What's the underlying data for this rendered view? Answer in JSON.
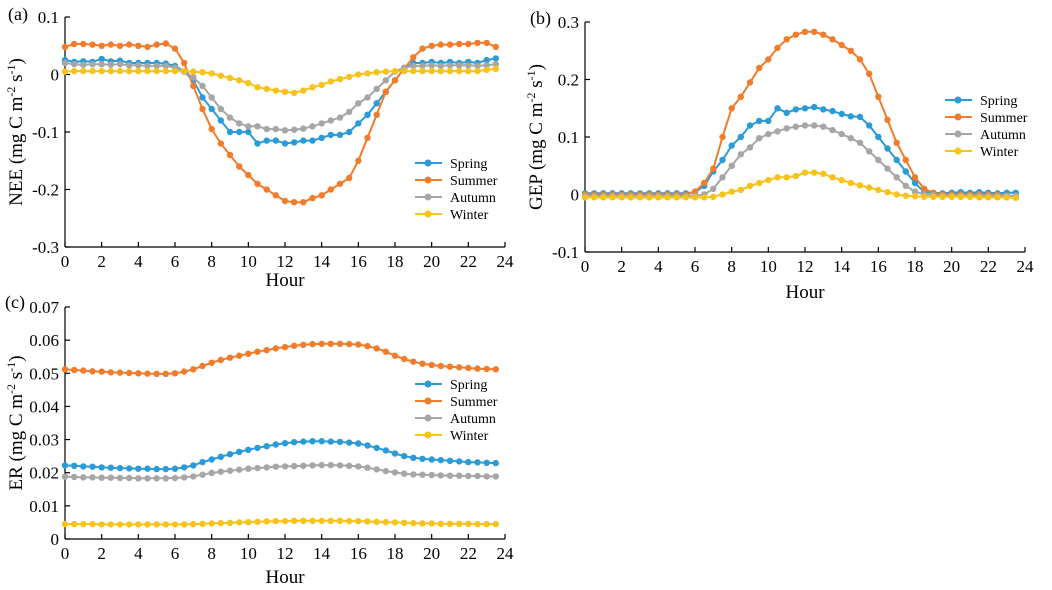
{
  "chart_data": [
    {
      "panel": "(a)",
      "type": "line",
      "title": "",
      "xlabel": "Hour",
      "ylabel_main": "NEE (mg C m",
      "ylabel_sup1": "-2",
      "ylabel_mid": " s",
      "ylabel_sup2": "-1",
      "ylabel_end": ")",
      "xlim": [
        0,
        24
      ],
      "ylim": [
        -0.3,
        0.1
      ],
      "xticks": [
        0,
        2,
        4,
        6,
        8,
        10,
        12,
        14,
        16,
        18,
        20,
        22,
        24
      ],
      "yticks": [
        -0.3,
        -0.2,
        -0.1,
        0,
        0.1
      ],
      "ytick_labels": [
        "-0.3",
        "-0.2",
        "-0.1",
        "0",
        "0.1"
      ],
      "legend_position": "center-right",
      "x": [
        0,
        0.5,
        1,
        1.5,
        2,
        2.5,
        3,
        3.5,
        4,
        4.5,
        5,
        5.5,
        6,
        6.5,
        7,
        7.5,
        8,
        8.5,
        9,
        9.5,
        10,
        10.5,
        11,
        11.5,
        12,
        12.5,
        13,
        13.5,
        14,
        14.5,
        15,
        15.5,
        16,
        16.5,
        17,
        17.5,
        18,
        18.5,
        19,
        19.5,
        20,
        20.5,
        21,
        21.5,
        22,
        22.5,
        23,
        23.5
      ],
      "series": [
        {
          "name": "Spring",
          "color": "#2b9bd8",
          "values": [
            0.025,
            0.022,
            0.023,
            0.022,
            0.027,
            0.023,
            0.024,
            0.02,
            0.02,
            0.02,
            0.02,
            0.019,
            0.015,
            0.005,
            -0.01,
            -0.04,
            -0.06,
            -0.08,
            -0.1,
            -0.1,
            -0.1,
            -0.12,
            -0.115,
            -0.115,
            -0.12,
            -0.118,
            -0.115,
            -0.115,
            -0.11,
            -0.105,
            -0.105,
            -0.1,
            -0.085,
            -0.07,
            -0.05,
            -0.03,
            -0.01,
            0.01,
            0.02,
            0.02,
            0.022,
            0.02,
            0.022,
            0.02,
            0.022,
            0.02,
            0.025,
            0.028
          ]
        },
        {
          "name": "Summer",
          "color": "#f07c2c",
          "values": [
            0.048,
            0.053,
            0.053,
            0.052,
            0.05,
            0.052,
            0.05,
            0.052,
            0.05,
            0.048,
            0.052,
            0.054,
            0.045,
            0.02,
            -0.02,
            -0.06,
            -0.095,
            -0.12,
            -0.14,
            -0.16,
            -0.175,
            -0.19,
            -0.2,
            -0.21,
            -0.22,
            -0.222,
            -0.222,
            -0.215,
            -0.21,
            -0.2,
            -0.19,
            -0.18,
            -0.15,
            -0.11,
            -0.07,
            -0.03,
            -0.01,
            0.01,
            0.03,
            0.045,
            0.05,
            0.052,
            0.052,
            0.053,
            0.053,
            0.055,
            0.055,
            0.048
          ]
        },
        {
          "name": "Autumn",
          "color": "#a6a6a6",
          "values": [
            0.02,
            0.018,
            0.017,
            0.018,
            0.018,
            0.017,
            0.018,
            0.016,
            0.016,
            0.015,
            0.015,
            0.015,
            0.012,
            0.005,
            -0.005,
            -0.02,
            -0.04,
            -0.06,
            -0.075,
            -0.085,
            -0.09,
            -0.09,
            -0.095,
            -0.095,
            -0.097,
            -0.096,
            -0.094,
            -0.09,
            -0.085,
            -0.08,
            -0.075,
            -0.065,
            -0.05,
            -0.04,
            -0.025,
            -0.01,
            0.005,
            0.012,
            0.015,
            0.015,
            0.016,
            0.015,
            0.016,
            0.016,
            0.016,
            0.015,
            0.016,
            0.018
          ]
        },
        {
          "name": "Winter",
          "color": "#f7c31a",
          "values": [
            0.005,
            0.006,
            0.006,
            0.006,
            0.006,
            0.006,
            0.006,
            0.006,
            0.006,
            0.006,
            0.006,
            0.006,
            0.006,
            0.006,
            0.005,
            0.004,
            0.002,
            -0.002,
            -0.006,
            -0.01,
            -0.015,
            -0.022,
            -0.025,
            -0.028,
            -0.03,
            -0.032,
            -0.028,
            -0.022,
            -0.018,
            -0.012,
            -0.008,
            -0.004,
            0,
            0.002,
            0.004,
            0.005,
            0.006,
            0.006,
            0.006,
            0.006,
            0.006,
            0.006,
            0.006,
            0.006,
            0.006,
            0.006,
            0.008,
            0.01
          ]
        }
      ]
    },
    {
      "panel": "(b)",
      "type": "line",
      "title": "",
      "xlabel": "Hour",
      "ylabel_main": "GEP (mg C m",
      "ylabel_sup1": "-2",
      "ylabel_mid": " s",
      "ylabel_sup2": "-1",
      "ylabel_end": ")",
      "xlim": [
        0,
        24
      ],
      "ylim": [
        -0.1,
        0.3
      ],
      "xticks": [
        0,
        2,
        4,
        6,
        8,
        10,
        12,
        14,
        16,
        18,
        20,
        22,
        24
      ],
      "yticks": [
        -0.1,
        0,
        0.1,
        0.2,
        0.3
      ],
      "ytick_labels": [
        "-0.1",
        "0",
        "0.1",
        "0.2",
        "0.3"
      ],
      "legend_position": "top-right",
      "x": [
        0,
        0.5,
        1,
        1.5,
        2,
        2.5,
        3,
        3.5,
        4,
        4.5,
        5,
        5.5,
        6,
        6.5,
        7,
        7.5,
        8,
        8.5,
        9,
        9.5,
        10,
        10.5,
        11,
        11.5,
        12,
        12.5,
        13,
        13.5,
        14,
        14.5,
        15,
        15.5,
        16,
        16.5,
        17,
        17.5,
        18,
        18.5,
        19,
        19.5,
        20,
        20.5,
        21,
        21.5,
        22,
        22.5,
        23,
        23.5
      ],
      "series": [
        {
          "name": "Spring",
          "color": "#2b9bd8",
          "values": [
            0.002,
            0.002,
            0.002,
            0.002,
            0.002,
            0.002,
            0.002,
            0.002,
            0.002,
            0.002,
            0.002,
            0.002,
            0.004,
            0.015,
            0.04,
            0.06,
            0.085,
            0.1,
            0.12,
            0.128,
            0.128,
            0.15,
            0.142,
            0.148,
            0.15,
            0.152,
            0.148,
            0.145,
            0.14,
            0.136,
            0.135,
            0.12,
            0.1,
            0.08,
            0.06,
            0.04,
            0.02,
            0.004,
            0.003,
            0.002,
            0.003,
            0.004,
            0.003,
            0.004,
            0.003,
            0.002,
            0.003,
            0.003
          ]
        },
        {
          "name": "Summer",
          "color": "#f07c2c",
          "values": [
            0,
            0,
            0,
            0,
            0,
            0,
            0,
            0,
            0,
            0,
            0,
            0,
            0.005,
            0.02,
            0.045,
            0.1,
            0.15,
            0.17,
            0.195,
            0.22,
            0.235,
            0.255,
            0.27,
            0.278,
            0.283,
            0.283,
            0.278,
            0.27,
            0.26,
            0.25,
            0.235,
            0.21,
            0.17,
            0.13,
            0.09,
            0.06,
            0.03,
            0.01,
            0.003,
            0,
            0,
            0,
            0,
            0,
            0,
            0,
            -0.002,
            -0.003
          ]
        },
        {
          "name": "Autumn",
          "color": "#a6a6a6",
          "values": [
            -0.002,
            -0.002,
            -0.002,
            -0.002,
            -0.002,
            -0.002,
            -0.002,
            -0.002,
            -0.002,
            -0.002,
            -0.002,
            -0.002,
            -0.002,
            0,
            0.01,
            0.03,
            0.05,
            0.07,
            0.082,
            0.098,
            0.105,
            0.11,
            0.115,
            0.118,
            0.12,
            0.12,
            0.118,
            0.112,
            0.105,
            0.098,
            0.09,
            0.075,
            0.06,
            0.045,
            0.03,
            0.015,
            0.005,
            0,
            -0.001,
            -0.002,
            -0.002,
            -0.002,
            -0.002,
            -0.002,
            -0.002,
            -0.002,
            -0.002,
            -0.002
          ]
        },
        {
          "name": "Winter",
          "color": "#f7c31a",
          "values": [
            -0.005,
            -0.005,
            -0.005,
            -0.005,
            -0.005,
            -0.005,
            -0.005,
            -0.005,
            -0.005,
            -0.005,
            -0.005,
            -0.005,
            -0.005,
            -0.005,
            -0.004,
            0,
            0.005,
            0.008,
            0.015,
            0.02,
            0.025,
            0.03,
            0.03,
            0.032,
            0.038,
            0.038,
            0.036,
            0.03,
            0.025,
            0.02,
            0.016,
            0.012,
            0.008,
            0.004,
            0,
            -0.002,
            -0.003,
            -0.004,
            -0.004,
            -0.004,
            -0.004,
            -0.004,
            -0.004,
            -0.005,
            -0.005,
            -0.005,
            -0.005,
            -0.006
          ]
        }
      ]
    },
    {
      "panel": "(c)",
      "type": "line",
      "title": "",
      "xlabel": "Hour",
      "ylabel_main": "ER (mg C m",
      "ylabel_sup1": "-2",
      "ylabel_mid": " s",
      "ylabel_sup2": "-1",
      "ylabel_end": ")",
      "xlim": [
        0,
        24
      ],
      "ylim": [
        0,
        0.07
      ],
      "xticks": [
        0,
        2,
        4,
        6,
        8,
        10,
        12,
        14,
        16,
        18,
        20,
        22,
        24
      ],
      "yticks": [
        0,
        0.01,
        0.02,
        0.03,
        0.04,
        0.05,
        0.06,
        0.07
      ],
      "ytick_labels": [
        "0",
        "0.01",
        "0.02",
        "0.03",
        "0.04",
        "0.05",
        "0.06",
        "0.07"
      ],
      "legend_position": "center-right",
      "x": [
        0,
        0.5,
        1,
        1.5,
        2,
        2.5,
        3,
        3.5,
        4,
        4.5,
        5,
        5.5,
        6,
        6.5,
        7,
        7.5,
        8,
        8.5,
        9,
        9.5,
        10,
        10.5,
        11,
        11.5,
        12,
        12.5,
        13,
        13.5,
        14,
        14.5,
        15,
        15.5,
        16,
        16.5,
        17,
        17.5,
        18,
        18.5,
        19,
        19.5,
        20,
        20.5,
        21,
        21.5,
        22,
        22.5,
        23,
        23.5
      ],
      "series": [
        {
          "name": "Spring",
          "color": "#2b9bd8",
          "values": [
            0.0222,
            0.0221,
            0.0219,
            0.0218,
            0.0216,
            0.0215,
            0.0214,
            0.0213,
            0.0212,
            0.0212,
            0.0211,
            0.0211,
            0.0212,
            0.0216,
            0.0222,
            0.0232,
            0.024,
            0.0248,
            0.0256,
            0.0263,
            0.0269,
            0.0275,
            0.028,
            0.0285,
            0.0289,
            0.0292,
            0.0294,
            0.0295,
            0.0295,
            0.0294,
            0.0293,
            0.0291,
            0.0288,
            0.0282,
            0.0275,
            0.0267,
            0.0258,
            0.025,
            0.0245,
            0.0242,
            0.024,
            0.0238,
            0.0236,
            0.0234,
            0.0232,
            0.0231,
            0.023,
            0.0229
          ]
        },
        {
          "name": "Summer",
          "color": "#f07c2c",
          "values": [
            0.0512,
            0.051,
            0.0508,
            0.0506,
            0.0505,
            0.0503,
            0.0502,
            0.0501,
            0.05,
            0.0499,
            0.0498,
            0.0498,
            0.05,
            0.0505,
            0.0512,
            0.0522,
            0.0532,
            0.054,
            0.0547,
            0.0553,
            0.0559,
            0.0565,
            0.057,
            0.0575,
            0.0579,
            0.0583,
            0.0586,
            0.0588,
            0.0589,
            0.0589,
            0.0589,
            0.0588,
            0.0587,
            0.0582,
            0.0575,
            0.0565,
            0.0553,
            0.0543,
            0.0535,
            0.0529,
            0.0525,
            0.0522,
            0.052,
            0.0518,
            0.0516,
            0.0514,
            0.0513,
            0.0512
          ]
        },
        {
          "name": "Autumn",
          "color": "#a6a6a6",
          "values": [
            0.0188,
            0.0187,
            0.0186,
            0.0186,
            0.0185,
            0.0185,
            0.0184,
            0.0184,
            0.0183,
            0.0183,
            0.0183,
            0.0183,
            0.0184,
            0.0186,
            0.0189,
            0.0194,
            0.0199,
            0.0203,
            0.0206,
            0.0209,
            0.0212,
            0.0214,
            0.0216,
            0.0218,
            0.0219,
            0.022,
            0.0221,
            0.0222,
            0.0223,
            0.0223,
            0.0222,
            0.0221,
            0.0219,
            0.0215,
            0.021,
            0.0205,
            0.0201,
            0.0197,
            0.0195,
            0.0194,
            0.0193,
            0.0192,
            0.0191,
            0.0191,
            0.019,
            0.019,
            0.0189,
            0.0189
          ]
        },
        {
          "name": "Winter",
          "color": "#f7c31a",
          "values": [
            0.0045,
            0.0045,
            0.0045,
            0.0045,
            0.0044,
            0.0044,
            0.0044,
            0.0044,
            0.0044,
            0.0044,
            0.0044,
            0.0044,
            0.0044,
            0.0044,
            0.0045,
            0.0046,
            0.0047,
            0.0048,
            0.0049,
            0.005,
            0.0051,
            0.0052,
            0.0053,
            0.0054,
            0.0054,
            0.0055,
            0.0055,
            0.0055,
            0.0055,
            0.0055,
            0.0055,
            0.0054,
            0.0054,
            0.0053,
            0.0052,
            0.0051,
            0.005,
            0.0049,
            0.0048,
            0.0047,
            0.0047,
            0.0046,
            0.0046,
            0.0046,
            0.0046,
            0.0045,
            0.0045,
            0.0045
          ]
        }
      ]
    }
  ]
}
